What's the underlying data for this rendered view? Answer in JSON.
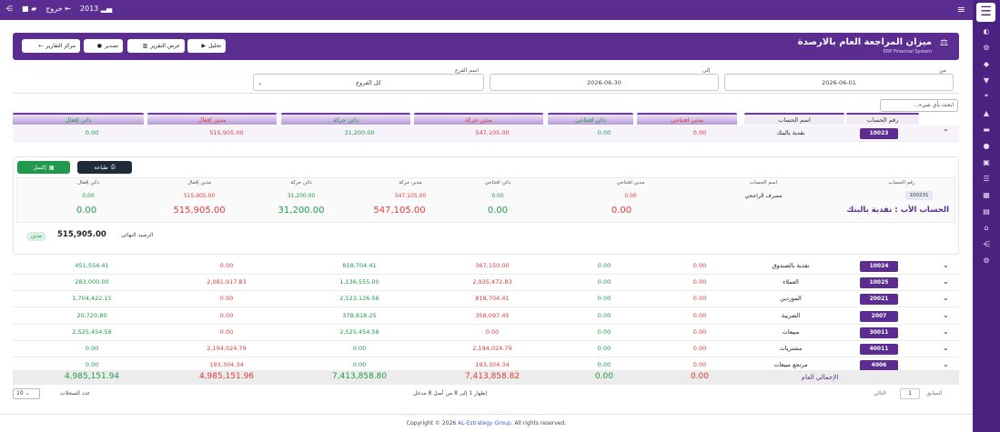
{
  "topbar": {
    "year": "2013",
    "logout": "خروج"
  },
  "header": {
    "title": "ميزان المراجعة العام بالارصدة",
    "subtitle": "ERP Financial System",
    "buttons": {
      "analyze": "تحليل",
      "report_view": "عرض التقرير",
      "export": "تصدير",
      "reports_center": "مركز التقارير"
    }
  },
  "filters": {
    "from_label": "من",
    "from_value": "2026-06-01",
    "to_label": "إلى",
    "to_value": "2026-06-30",
    "branch_label": "اسم الفرع",
    "branch_value": "كل الفروع",
    "search_placeholder": "ابحث بأي شيء..."
  },
  "columns": {
    "account_no": "رقم الحساب",
    "account_name": "اسم الحساب",
    "opening_debit": "مدين افتتاحي",
    "opening_credit": "دائن افتتاحي",
    "movement_debit": "مدين حركة",
    "movement_credit": "دائن حركة",
    "closing_debit": "مدين إقفال",
    "closing_credit": "دائن إقفال"
  },
  "expanded_row": {
    "account_no": "10023",
    "account_name": "نقدية بالبنك",
    "opening_debit": "0.00",
    "opening_credit": "0.00",
    "movement_debit": "547,105.00",
    "movement_credit": "31,200.00",
    "closing_debit": "515,905.00",
    "closing_credit": "0.00"
  },
  "detail": {
    "excel": "إكسل",
    "print": "طباعة",
    "sub_account_no": "100231",
    "sub_account_name": "مصرف الراجحي",
    "sub_opening_debit": "0.00",
    "sub_opening_credit": "0.00",
    "sub_movement_debit": "547,105.00",
    "sub_movement_credit": "31,200.00",
    "sub_closing_debit": "515,905.00",
    "sub_closing_credit": "0.00",
    "parent_label": "الحساب الأب : نقدية بالبنك",
    "big_opening_debit": "0.00",
    "big_opening_credit": "0.00",
    "big_movement_debit": "547,105.00",
    "big_movement_credit": "31,200.00",
    "big_closing_debit": "515,905.00",
    "big_closing_credit": "0.00",
    "final_balance_label": "الرصيد النهائي",
    "final_balance_value": "515,905.00",
    "final_balance_side": "مدين"
  },
  "rows": [
    {
      "no": "10024",
      "name": "نقدية بالصندوق",
      "od": "0.00",
      "oc": "0.00",
      "md": "367,150.00",
      "mc": "818,704.41",
      "cd": "0.00",
      "cc": "451,554.41"
    },
    {
      "no": "10025",
      "name": "العملاء",
      "od": "0.00",
      "oc": "0.00",
      "md": "2,935,472.83",
      "mc": "1,136,555.00",
      "cd": "2,081,917.83",
      "cc": "283,000.00"
    },
    {
      "no": "20021",
      "name": "الموردين",
      "od": "0.00",
      "oc": "0.00",
      "md": "818,704.41",
      "mc": "2,523,126.56",
      "cd": "0.00",
      "cc": "1,704,422.15"
    },
    {
      "no": "2007",
      "name": "الضريبة",
      "od": "0.00",
      "oc": "0.00",
      "md": "358,097.45",
      "mc": "378,818.25",
      "cd": "0.00",
      "cc": "20,720.80"
    },
    {
      "no": "30011",
      "name": "مبيعات",
      "od": "0.00",
      "oc": "0.00",
      "md": "0.00",
      "mc": "2,525,454.58",
      "cd": "0.00",
      "cc": "2,525,454.58"
    },
    {
      "no": "40011",
      "name": "مشتريات",
      "od": "0.00",
      "oc": "0.00",
      "md": "2,194,024.79",
      "mc": "0.00",
      "cd": "2,194,024.79",
      "cc": "0.00"
    },
    {
      "no": "4006",
      "name": "مرتجع مبيعات",
      "od": "0.00",
      "oc": "0.00",
      "md": "193,304.34",
      "mc": "0.00",
      "cd": "193,304.34",
      "cc": "0.00"
    }
  ],
  "totals": {
    "label": "الإجمالي العام",
    "od": "0.00",
    "oc": "0.00",
    "md": "7,413,858.82",
    "mc": "7,413,858.80",
    "cd": "4,985,151.96",
    "cc": "4,985,151.94"
  },
  "pagination": {
    "prev": "السابق",
    "page": "1",
    "next": "التالي",
    "info": "إظهار 1 إلى 8 من أصل 8 مدخل",
    "page_size_label": "عدد السجلات",
    "page_size": "10"
  },
  "footer": {
    "copyright_prefix": "Copyright © 2026",
    "brand": "AL-Estrategy Group.",
    "copyright_suffix": "All rights reserved."
  },
  "colors": {
    "primary": "#5b2d90",
    "debit_red": "#e03b3b",
    "credit_green": "#1f9a4a"
  }
}
